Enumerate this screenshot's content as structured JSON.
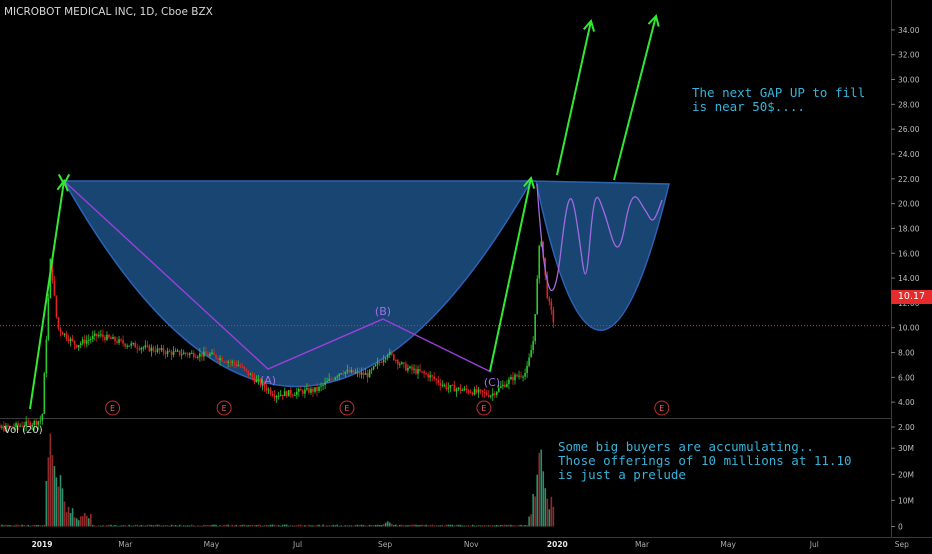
{
  "header": {
    "title": "MICROBOT MEDICAL INC, 1D, Cboe BZX"
  },
  "volume_panel": {
    "label": "Vol (20)"
  },
  "annotations": {
    "gap_note": [
      "The next GAP UP to fill",
      "is near 50$...."
    ],
    "buyers_note": [
      "Some big buyers are accumulating..",
      "Those offerings of 10 millions at 11.10",
      "is just a prelude"
    ],
    "point_a": "(A)",
    "point_b": "(B)",
    "point_c": "(C)",
    "earnings_marker": "E"
  },
  "current_price_label": "10.17",
  "colors": {
    "background": "#000000",
    "up": "#2ec72e",
    "down": "#e02424",
    "cup_fill": "#1c4d80",
    "arrow": "#33e833",
    "pattern_line": "#9b3fd9",
    "projection": "#a06ae0",
    "annotation_text": "#37b3d9",
    "price_line": "#e52b2b"
  },
  "chart_data": [
    {
      "type": "candlestick",
      "title": "MICROBOT MEDICAL INC, 1D, Cboe BZX",
      "x_tick_labels": [
        "2019",
        "Mar",
        "May",
        "Jul",
        "Sep",
        "Nov",
        "2020",
        "Mar",
        "May",
        "Jul",
        "Sep"
      ],
      "y_tick_labels": [
        "2.00",
        "4.00",
        "6.00",
        "8.00",
        "10.00",
        "12.00",
        "14.00",
        "16.00",
        "18.00",
        "20.00",
        "22.00",
        "24.00",
        "26.00",
        "28.00",
        "30.00",
        "32.00",
        "34.00"
      ],
      "ylim": [
        0.5,
        34.5
      ],
      "current_price": 10.17,
      "price_path": [
        {
          "date": "2018-11-15",
          "price": 2.0
        },
        {
          "date": "2018-12-05",
          "price": 1.9
        },
        {
          "date": "2018-12-25",
          "price": 2.3
        },
        {
          "date": "2019-01-01",
          "price": 2.6
        },
        {
          "date": "2019-01-07",
          "price": 15.5
        },
        {
          "date": "2019-01-12",
          "price": 10.0
        },
        {
          "date": "2019-01-25",
          "price": 8.6
        },
        {
          "date": "2019-02-10",
          "price": 9.4
        },
        {
          "date": "2019-03-01",
          "price": 8.7
        },
        {
          "date": "2019-04-01",
          "price": 8.0
        },
        {
          "date": "2019-05-01",
          "price": 7.8
        },
        {
          "date": "2019-05-20",
          "price": 7.0
        },
        {
          "date": "2019-06-01",
          "price": 5.8
        },
        {
          "date": "2019-06-15",
          "price": 4.6
        },
        {
          "date": "2019-07-15",
          "price": 5.0
        },
        {
          "date": "2019-08-01",
          "price": 6.5
        },
        {
          "date": "2019-08-20",
          "price": 6.2
        },
        {
          "date": "2019-09-03",
          "price": 8.0
        },
        {
          "date": "2019-09-15",
          "price": 6.8
        },
        {
          "date": "2019-10-01",
          "price": 6.2
        },
        {
          "date": "2019-10-15",
          "price": 5.2
        },
        {
          "date": "2019-11-15",
          "price": 4.6
        },
        {
          "date": "2019-12-01",
          "price": 6.0
        },
        {
          "date": "2019-12-10",
          "price": 6.4
        },
        {
          "date": "2019-12-15",
          "price": 9.0
        },
        {
          "date": "2019-12-20",
          "price": 17.8
        },
        {
          "date": "2019-12-25",
          "price": 12.5
        },
        {
          "date": "2019-12-30",
          "price": 10.17
        }
      ],
      "earnings_dates": [
        "2019-02-20",
        "2019-05-10",
        "2019-08-05",
        "2019-11-10",
        "2020-03-15"
      ]
    },
    {
      "type": "bar",
      "title": "Vol (20)",
      "y_tick_labels": [
        "0",
        "10M",
        "20M",
        "30M"
      ],
      "ylim": [
        0,
        36
      ],
      "spikes": [
        {
          "date": "2019-01-07",
          "value": 36
        },
        {
          "date": "2019-01-10",
          "value": 24
        },
        {
          "date": "2019-01-14",
          "value": 20
        },
        {
          "date": "2019-09-03",
          "value": 2
        },
        {
          "date": "2019-12-20",
          "value": 33
        },
        {
          "date": "2019-12-23",
          "value": 16
        }
      ]
    }
  ]
}
